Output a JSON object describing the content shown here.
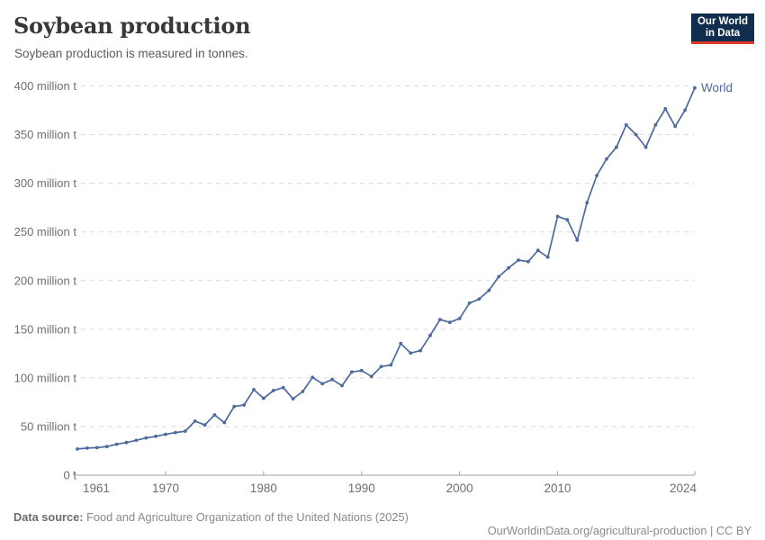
{
  "header": {
    "title": "Soybean production",
    "subtitle": "Soybean production is measured in tonnes.",
    "logo": {
      "line1": "Our World",
      "line2": "in Data",
      "bg_color": "#102d4e",
      "accent_color": "#d93a2b"
    }
  },
  "chart_data": {
    "type": "line",
    "title": "Soybean production",
    "unit": "tonnes",
    "value_scale": "million tonnes",
    "grid": "horizontal dashed",
    "legend_position": "end-of-line label",
    "xlim": [
      1961,
      2024
    ],
    "ylim": [
      0,
      400
    ],
    "x_ticks": [
      1961,
      1970,
      1980,
      1990,
      2000,
      2010,
      2024
    ],
    "y_ticks": [
      0,
      50,
      100,
      150,
      200,
      250,
      300,
      350,
      400
    ],
    "y_tick_labels": [
      "0 t",
      "50 million t",
      "100 million t",
      "150 million t",
      "200 million t",
      "250 million t",
      "300 million t",
      "350 million t",
      "400 million t"
    ],
    "series": [
      {
        "name": "World",
        "color": "#4c6a9c",
        "x": [
          1961,
          1962,
          1963,
          1964,
          1965,
          1966,
          1967,
          1968,
          1969,
          1970,
          1971,
          1972,
          1973,
          1974,
          1975,
          1976,
          1977,
          1978,
          1979,
          1980,
          1981,
          1982,
          1983,
          1984,
          1985,
          1986,
          1987,
          1988,
          1989,
          1990,
          1991,
          1992,
          1993,
          1994,
          1995,
          1996,
          1997,
          1998,
          1999,
          2000,
          2001,
          2002,
          2003,
          2004,
          2005,
          2006,
          2007,
          2008,
          2009,
          2010,
          2011,
          2012,
          2013,
          2014,
          2015,
          2016,
          2017,
          2018,
          2019,
          2020,
          2021,
          2022,
          2023,
          2024
        ],
        "values": [
          26.9,
          27.8,
          28.3,
          29.4,
          31.8,
          33.6,
          35.8,
          38.3,
          40.0,
          42.0,
          43.8,
          45.2,
          55.6,
          51.6,
          62.0,
          54.0,
          70.6,
          72.1,
          88.0,
          79.0,
          87.0,
          90.0,
          78.5,
          86.0,
          100.5,
          94.0,
          98.3,
          92.0,
          106.1,
          107.6,
          101.5,
          111.6,
          113.3,
          135.3,
          125.5,
          128.0,
          143.6,
          160.0,
          157.0,
          161.0,
          176.8,
          181.0,
          190.0,
          204.0,
          213.0,
          221.0,
          219.5,
          231.0,
          224.0,
          266.0,
          262.5,
          241.5,
          280.0,
          308.0,
          325.0,
          337.0,
          360.0,
          350.0,
          337.0,
          360.0,
          376.5,
          358.5,
          375.0,
          398.0
        ]
      }
    ]
  },
  "footer": {
    "source_label": "Data source:",
    "source_text": " Food and Agriculture Organization of the United Nations (2025)",
    "link_text": "OurWorldinData.org/agricultural-production",
    "license_text": " | CC BY"
  },
  "colors": {
    "line": "#4c6a9c",
    "gridline": "#d9d9d9",
    "axis": "#a3a3a3",
    "tick_label": "#6f6f6f",
    "title": "#383838",
    "subtitle": "#5b5b5b"
  }
}
